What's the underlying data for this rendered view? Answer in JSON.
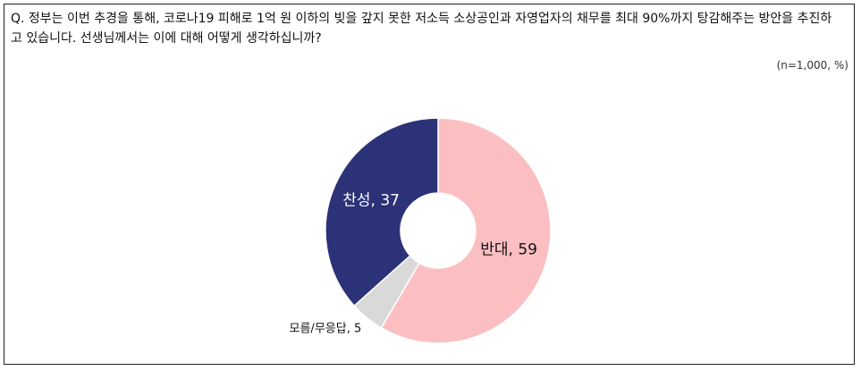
{
  "chart_data": {
    "type": "donut",
    "title": "Q. 정부는 이번 추경을 통해, 코로나19 피해로 1억 원 이하의 빚을 갚지 못한 저소득 소상공인과 자영업자의 채무를 최대 90%까지 탕감해주는 방안을 추진하고 있습니다. 선생님께서는 이에 대해 어떻게 생각하십니까?",
    "note": "(n=1,000, %)",
    "values": [
      59,
      5,
      37
    ],
    "value_labels": [
      "반대, 59",
      "모름/무응답, 5",
      "찬성, 37"
    ],
    "colors": [
      "#fbbfc2",
      "#d9d9d9",
      "#2b3278"
    ]
  }
}
